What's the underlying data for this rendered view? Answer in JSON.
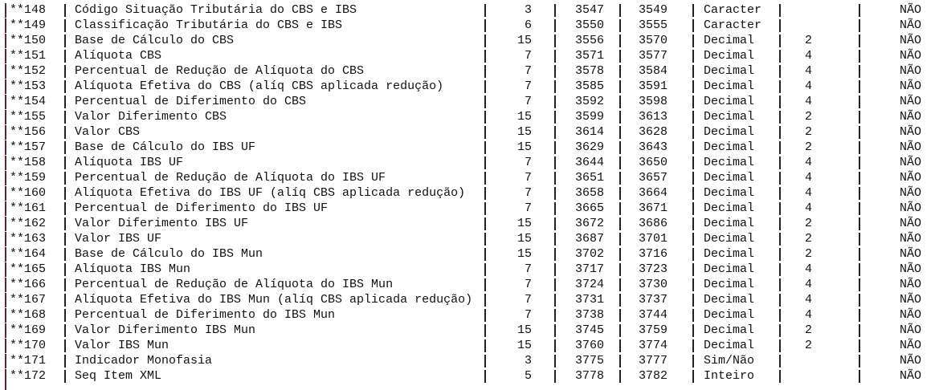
{
  "rows": [
    {
      "id": "**148",
      "desc": "Código Situação Tributária do CBS e IBS",
      "size": "3",
      "start": "3547",
      "end": "3549",
      "type": "Caracter",
      "dec": "",
      "req": "NÃO"
    },
    {
      "id": "**149",
      "desc": "Classificação Tributária do CBS e IBS",
      "size": "6",
      "start": "3550",
      "end": "3555",
      "type": "Caracter",
      "dec": "",
      "req": "NÃO"
    },
    {
      "id": "**150",
      "desc": "Base de Cálculo do CBS",
      "size": "15",
      "start": "3556",
      "end": "3570",
      "type": "Decimal",
      "dec": "2",
      "req": "NÃO"
    },
    {
      "id": "**151",
      "desc": "Alíquota CBS",
      "size": "7",
      "start": "3571",
      "end": "3577",
      "type": "Decimal",
      "dec": "4",
      "req": "NÃO"
    },
    {
      "id": "**152",
      "desc": "Percentual de Redução de Alíquota do CBS",
      "size": "7",
      "start": "3578",
      "end": "3584",
      "type": "Decimal",
      "dec": "4",
      "req": "NÃO"
    },
    {
      "id": "**153",
      "desc": "Alíquota Efetiva do CBS (alíq CBS aplicada redução)",
      "size": "7",
      "start": "3585",
      "end": "3591",
      "type": "Decimal",
      "dec": "4",
      "req": "NÃO"
    },
    {
      "id": "**154",
      "desc": "Percentual de Diferimento do CBS",
      "size": "7",
      "start": "3592",
      "end": "3598",
      "type": "Decimal",
      "dec": "4",
      "req": "NÃO"
    },
    {
      "id": "**155",
      "desc": "Valor Diferimento CBS",
      "size": "15",
      "start": "3599",
      "end": "3613",
      "type": "Decimal",
      "dec": "2",
      "req": "NÃO"
    },
    {
      "id": "**156",
      "desc": "Valor CBS",
      "size": "15",
      "start": "3614",
      "end": "3628",
      "type": "Decimal",
      "dec": "2",
      "req": "NÃO"
    },
    {
      "id": "**157",
      "desc": "Base de Cálculo do IBS UF",
      "size": "15",
      "start": "3629",
      "end": "3643",
      "type": "Decimal",
      "dec": "2",
      "req": "NÃO"
    },
    {
      "id": "**158",
      "desc": "Alíquota IBS UF",
      "size": "7",
      "start": "3644",
      "end": "3650",
      "type": "Decimal",
      "dec": "4",
      "req": "NÃO"
    },
    {
      "id": "**159",
      "desc": "Percentual de Redução de Alíquota do IBS UF",
      "size": "7",
      "start": "3651",
      "end": "3657",
      "type": "Decimal",
      "dec": "4",
      "req": "NÃO"
    },
    {
      "id": "**160",
      "desc": "Alíquota Efetiva do IBS UF (alíq CBS aplicada redução)",
      "size": "7",
      "start": "3658",
      "end": "3664",
      "type": "Decimal",
      "dec": "4",
      "req": "NÃO"
    },
    {
      "id": "**161",
      "desc": "Percentual de Diferimento do IBS UF",
      "size": "7",
      "start": "3665",
      "end": "3671",
      "type": "Decimal",
      "dec": "4",
      "req": "NÃO"
    },
    {
      "id": "**162",
      "desc": "Valor Diferimento IBS UF",
      "size": "15",
      "start": "3672",
      "end": "3686",
      "type": "Decimal",
      "dec": "2",
      "req": "NÃO"
    },
    {
      "id": "**163",
      "desc": "Valor IBS UF",
      "size": "15",
      "start": "3687",
      "end": "3701",
      "type": "Decimal",
      "dec": "2",
      "req": "NÃO"
    },
    {
      "id": "**164",
      "desc": "Base de Cálculo do IBS Mun",
      "size": "15",
      "start": "3702",
      "end": "3716",
      "type": "Decimal",
      "dec": "2",
      "req": "NÃO"
    },
    {
      "id": "**165",
      "desc": "Alíquota IBS Mun",
      "size": "7",
      "start": "3717",
      "end": "3723",
      "type": "Decimal",
      "dec": "4",
      "req": "NÃO"
    },
    {
      "id": "**166",
      "desc": "Percentual de Redução de Alíquota do IBS Mun",
      "size": "7",
      "start": "3724",
      "end": "3730",
      "type": "Decimal",
      "dec": "4",
      "req": "NÃO"
    },
    {
      "id": "**167",
      "desc": "Alíquota Efetiva do IBS Mun (alíq CBS aplicada redução)",
      "size": "7",
      "start": "3731",
      "end": "3737",
      "type": "Decimal",
      "dec": "4",
      "req": "NÃO"
    },
    {
      "id": "**168",
      "desc": "Percentual de Diferimento do IBS Mun",
      "size": "7",
      "start": "3738",
      "end": "3744",
      "type": "Decimal",
      "dec": "4",
      "req": "NÃO"
    },
    {
      "id": "**169",
      "desc": "Valor Diferimento IBS Mun",
      "size": "15",
      "start": "3745",
      "end": "3759",
      "type": "Decimal",
      "dec": "2",
      "req": "NÃO"
    },
    {
      "id": "**170",
      "desc": "Valor IBS Mun",
      "size": "15",
      "start": "3760",
      "end": "3774",
      "type": "Decimal",
      "dec": "2",
      "req": "NÃO"
    },
    {
      "id": "**171",
      "desc": "Indicador Monofasia",
      "size": "3",
      "start": "3775",
      "end": "3777",
      "type": "Sim/Não",
      "dec": "",
      "req": "NÃO"
    },
    {
      "id": "**172",
      "desc": "Seq Item XML",
      "size": "5",
      "start": "3778",
      "end": "3782",
      "type": "Inteiro",
      "dec": "",
      "req": "NÃO"
    }
  ]
}
